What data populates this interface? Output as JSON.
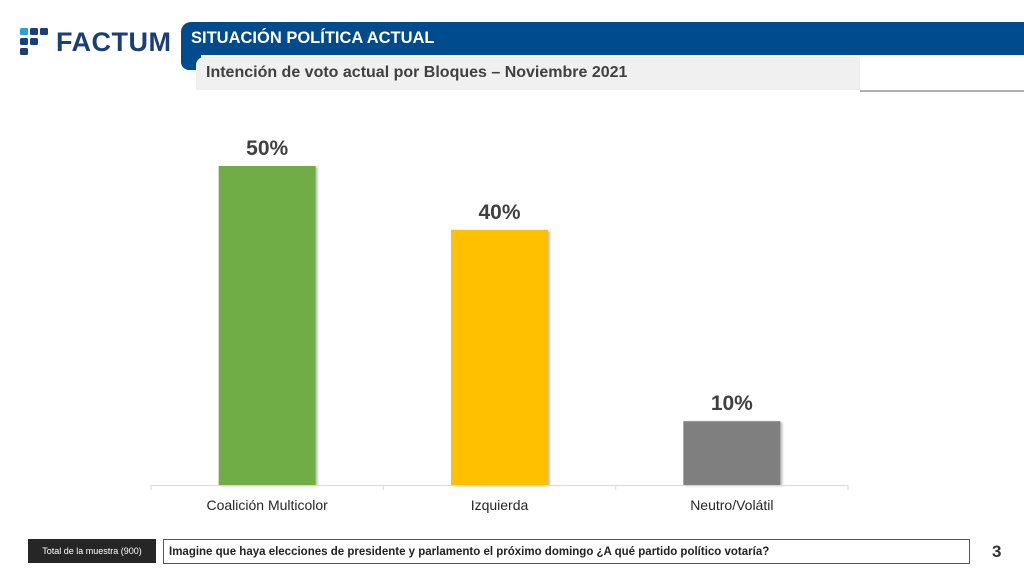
{
  "brand": {
    "name": "FACTUM",
    "primary_color": "#004b8d",
    "logo_color": "#1c3e78",
    "logo_accent": "#2a9ee0"
  },
  "header": {
    "section_title": "SITUACIÓN POLÍTICA ACTUAL",
    "subtitle": "Intención de voto actual por Bloques – Noviembre 2021"
  },
  "chart_data": {
    "type": "bar",
    "title": "Intención de voto actual por Bloques – Noviembre 2021",
    "xlabel": "",
    "ylabel": "",
    "ylim": [
      0,
      50
    ],
    "grid": false,
    "categories": [
      "Coalición Multicolor",
      "Izquierda",
      "Neutro/Volátil"
    ],
    "values": [
      50,
      40,
      10
    ],
    "value_labels": [
      "50%",
      "40%",
      "10%"
    ],
    "colors": [
      "#70ad47",
      "#ffc000",
      "#7f7f7f"
    ]
  },
  "footer": {
    "sample_label": "Total de la muestra (900)",
    "question": "Imagine que haya elecciones de presidente y parlamento el próximo domingo ¿A qué partido político votaría?",
    "page_number": "3"
  }
}
